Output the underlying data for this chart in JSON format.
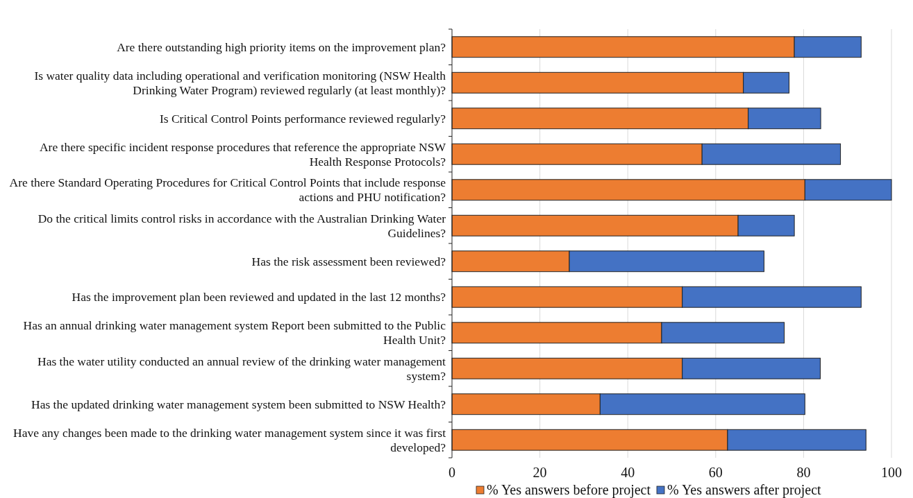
{
  "chart_data": {
    "type": "bar",
    "orientation": "horizontal",
    "stacked": true,
    "categories": [
      "Are there outstanding high priority items on the improvement plan?",
      "Is water quality data including operational and verification monitoring (NSW Health Drinking Water Program) reviewed regularly (at least monthly)?",
      "Is Critical Control Points performance reviewed regularly?",
      "Are there specific incident response procedures that reference the appropriate NSW Health Response Protocols?",
      "Are there Standard Operating Procedures for Critical Control Points that include response actions and PHU notification?",
      "Do the critical limits control risks in accordance with the Australian Drinking Water Guidelines?",
      "Has the risk assessment been reviewed?",
      "Has the improvement plan been reviewed and updated in the last 12 months?",
      "Has an annual drinking water management system Report been submitted to the Public Health Unit?",
      "Has the water utility conducted an annual review of the drinking water management system?",
      "Has the updated drinking water management system been submitted to NSW Health?",
      "Have any changes been made to the drinking water management system since it was first developed?"
    ],
    "series": [
      {
        "name": "% Yes answers before project",
        "color": "#ed7d31",
        "values": [
          77.9,
          66.3,
          67.4,
          56.9,
          80.3,
          65.1,
          26.7,
          52.4,
          47.7,
          52.4,
          33.7,
          62.7
        ]
      },
      {
        "name": "% Yes answers after project",
        "color": "#4472c4",
        "values": [
          15.2,
          10.4,
          16.5,
          31.5,
          19.7,
          12.8,
          44.3,
          40.7,
          27.9,
          31.4,
          46.6,
          31.5
        ]
      }
    ],
    "xlim": [
      0,
      100
    ],
    "xticks": [
      0,
      20,
      40,
      60,
      80,
      100
    ],
    "grid": "x",
    "legend": "bottom"
  }
}
